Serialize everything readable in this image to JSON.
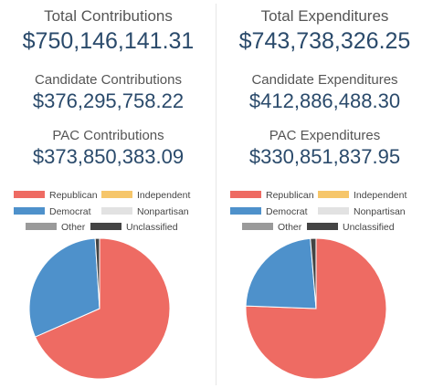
{
  "colors": {
    "Republican": "#ee6b63",
    "Independent": "#f6c66a",
    "Democrat": "#4e91cb",
    "Nonpartisan": "#e2e2e2",
    "Other": "#9a9a9a",
    "Unclassified": "#444444"
  },
  "contributions": {
    "total_label": "Total Contributions",
    "total_value": "$750,146,141.31",
    "candidate_label": "Candidate Contributions",
    "candidate_value": "$376,295,758.22",
    "pac_label": "PAC Contributions",
    "pac_value": "$373,850,383.09"
  },
  "expenditures": {
    "total_label": "Total Expenditures",
    "total_value": "$743,738,326.25",
    "candidate_label": "Candidate Expenditures",
    "candidate_value": "$412,886,488.30",
    "pac_label": "PAC Expenditures",
    "pac_value": "$330,851,837.95"
  },
  "legend": [
    "Republican",
    "Independent",
    "Democrat",
    "Nonpartisan",
    "Other",
    "Unclassified"
  ],
  "chart_data": [
    {
      "type": "pie",
      "legend_position": "top",
      "categories": [
        "Republican",
        "Independent",
        "Democrat",
        "Nonpartisan",
        "Other",
        "Unclassified"
      ],
      "values": [
        68.4,
        0.0,
        30.6,
        0.0,
        0.0,
        1.0
      ]
    },
    {
      "type": "pie",
      "legend_position": "top",
      "categories": [
        "Republican",
        "Independent",
        "Democrat",
        "Nonpartisan",
        "Other",
        "Unclassified"
      ],
      "values": [
        75.6,
        0.0,
        23.1,
        0.0,
        0.0,
        1.3
      ]
    }
  ]
}
